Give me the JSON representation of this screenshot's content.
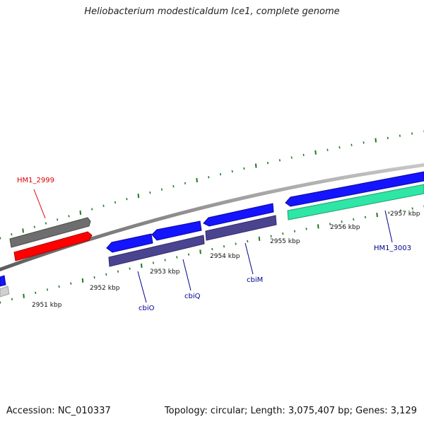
{
  "title": "Heliobacterium modesticaldum Ice1, complete genome",
  "footer": {
    "accession": "Accession: NC_010337",
    "summary": "Topology: circular; Length: 3,075,407 bp; Genes: 3,129"
  },
  "colors": {
    "backbone": "#8a8a8a",
    "tick": "#1f7a1f",
    "gray_gene": "#6e6e6e",
    "light_gene": "#d0d0d0",
    "red_gene": "#ff0000",
    "blue_gene": "#1414ff",
    "purple_gene": "#4a4490",
    "teal_gene": "#2ee6a6",
    "label_red": "#dd0000",
    "label_blue": "#00008b"
  },
  "scale_labels": [
    "2951 kbp",
    "2952 kbp",
    "2953 kbp",
    "2954 kbp",
    "2955 kbp",
    "2956 kbp",
    "2957 kbp"
  ],
  "gene_labels": [
    {
      "name": "HM1_2999",
      "color": "red"
    },
    {
      "name": "cbiO",
      "color": "blue"
    },
    {
      "name": "cbiQ",
      "color": "blue"
    },
    {
      "name": "cbiM",
      "color": "blue"
    },
    {
      "name": "HM1_3003",
      "color": "blue"
    }
  ]
}
